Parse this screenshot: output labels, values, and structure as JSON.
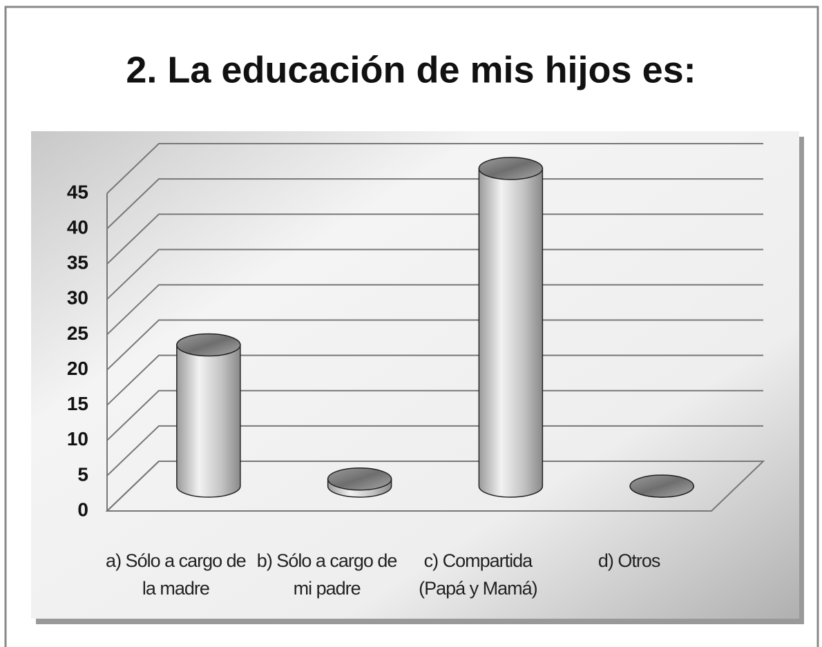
{
  "chart_data": {
    "type": "bar3d",
    "title": "2. La educación de mis hijos es:",
    "categories": [
      "a) Sólo a cargo de la madre",
      "b) Sólo a cargo de mi padre",
      "c) Compartida (Papá y Mamá)",
      "d) Otros"
    ],
    "values": [
      20,
      1,
      45,
      0
    ],
    "color": "#b8b8b8",
    "ylim": [
      0,
      45
    ],
    "yticks": [
      0,
      5,
      10,
      15,
      20,
      25,
      30,
      35,
      40,
      45
    ],
    "grid": true
  }
}
